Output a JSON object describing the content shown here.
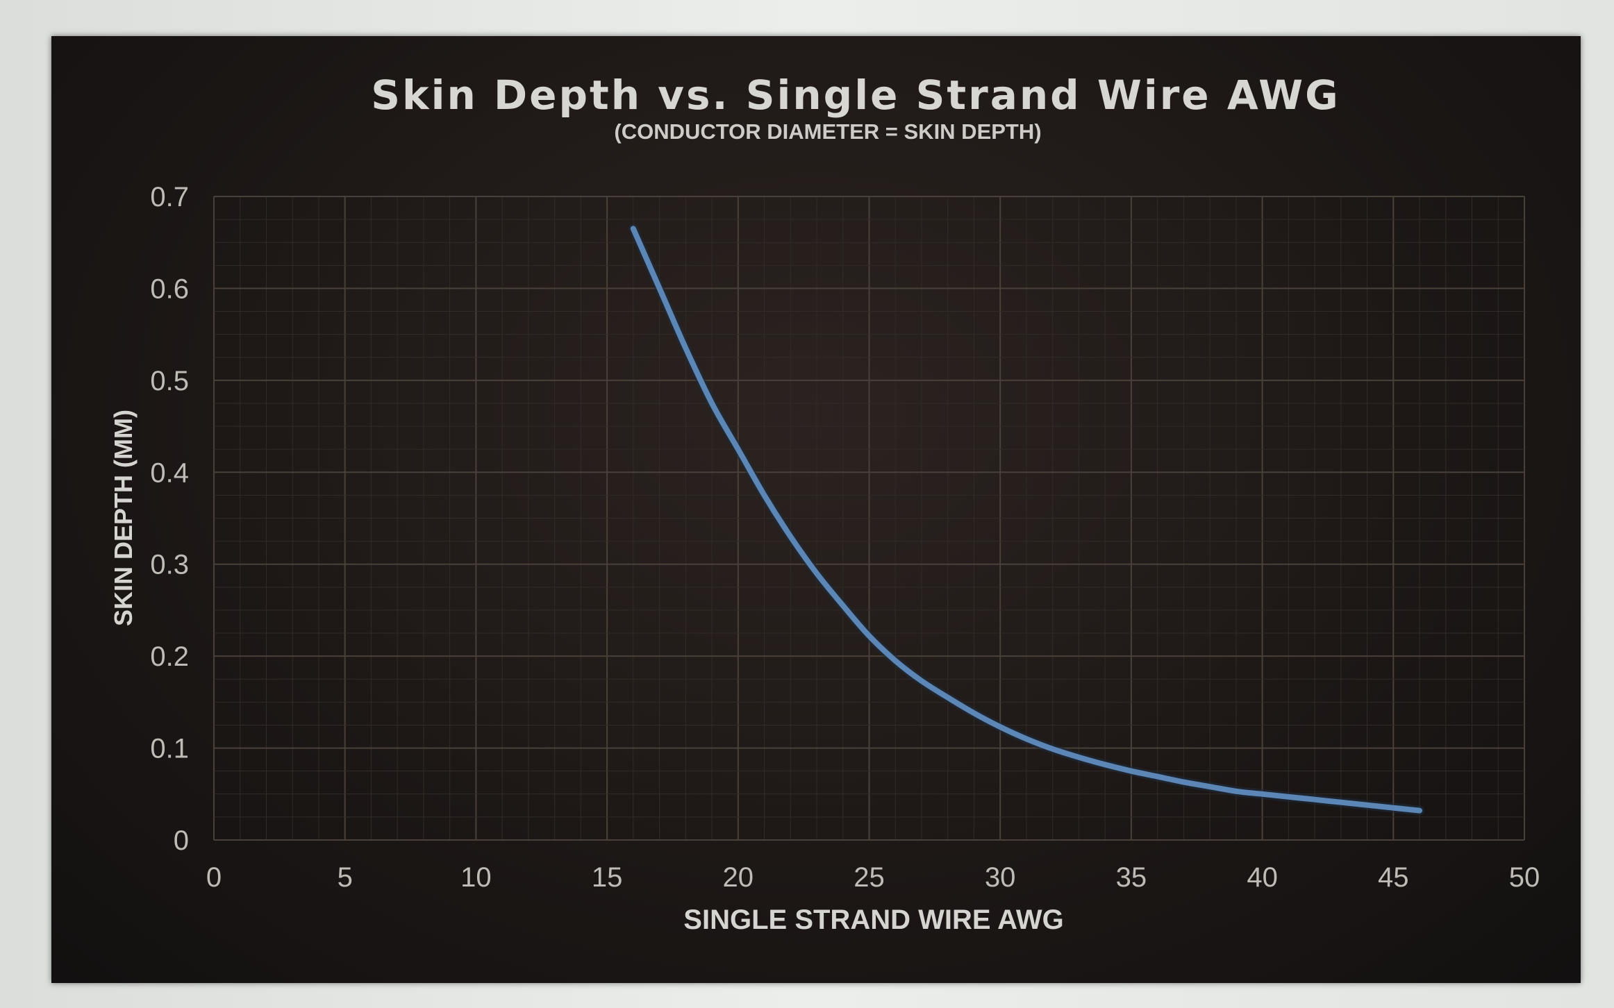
{
  "chart_data": {
    "type": "line",
    "title": "Skin Depth vs. Single Strand Wire AWG",
    "subtitle": "(CONDUCTOR DIAMETER = SKIN DEPTH)",
    "xlabel": "SINGLE STRAND WIRE AWG",
    "ylabel": "SKIN DEPTH (MM)",
    "xlim": [
      0,
      50
    ],
    "ylim": [
      0,
      0.7
    ],
    "x_ticks": [
      "0",
      "5",
      "10",
      "15",
      "20",
      "25",
      "30",
      "35",
      "40",
      "45",
      "50"
    ],
    "y_ticks": [
      "0",
      "0.1",
      "0.2",
      "0.3",
      "0.4",
      "0.5",
      "0.6",
      "0.7"
    ],
    "grid": true,
    "legend": "none",
    "series": [
      {
        "color": "#5b86b6",
        "x": [
          16,
          17,
          18,
          19,
          20,
          21,
          22,
          23,
          24,
          25,
          26,
          27,
          28,
          29,
          30,
          31,
          32,
          33,
          34,
          35,
          36,
          37,
          38,
          39,
          40,
          41,
          42,
          43,
          44,
          45,
          46
        ],
        "y": [
          0.665,
          0.6,
          0.535,
          0.475,
          0.425,
          0.375,
          0.33,
          0.29,
          0.255,
          0.222,
          0.195,
          0.173,
          0.155,
          0.138,
          0.123,
          0.11,
          0.099,
          0.09,
          0.082,
          0.075,
          0.069,
          0.063,
          0.058,
          0.053,
          0.05,
          0.047,
          0.044,
          0.041,
          0.038,
          0.035,
          0.032
        ]
      }
    ]
  }
}
